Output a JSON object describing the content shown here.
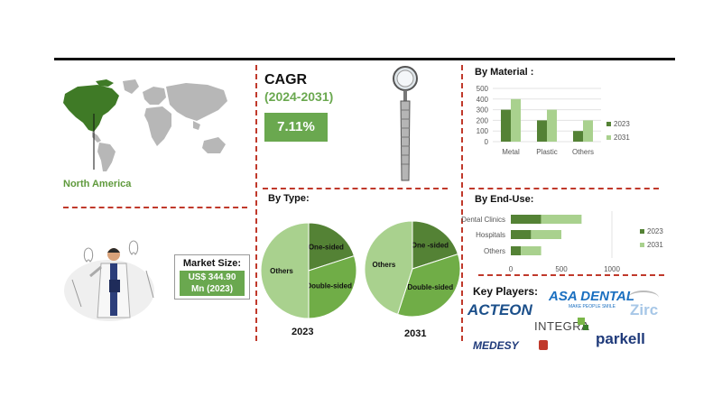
{
  "region": {
    "name": "North America"
  },
  "cagr": {
    "title": "CAGR",
    "years": "(2024-2031)",
    "value": "7.11%"
  },
  "market_size": {
    "label": "Market Size:",
    "value_line1": "US$ 344.90",
    "value_line2": "Mn (2023)"
  },
  "key_players": {
    "title": "Key Players:",
    "logos": [
      "ACTEON",
      "ASA DENTAL",
      "MAKE PEOPLE SMILE",
      "Zirc",
      "INTEGRA",
      "MEDESY",
      "parkell"
    ]
  },
  "colors": {
    "dark_green": "#548235",
    "mid_green": "#70ad47",
    "light_green": "#a9d18e",
    "accent_red": "#c0392b"
  },
  "chart_data": [
    {
      "type": "bar",
      "title": "By Material :",
      "categories": [
        "Metal",
        "Plastic",
        "Others"
      ],
      "series": [
        {
          "name": "2023",
          "values": [
            300,
            200,
            100
          ]
        },
        {
          "name": "2031",
          "values": [
            400,
            300,
            200
          ]
        }
      ],
      "ylim": [
        0,
        500
      ],
      "yticks": [
        "0",
        "100",
        "200",
        "300",
        "400",
        "500"
      ],
      "grid": true,
      "legend": "right"
    },
    {
      "type": "bar",
      "orientation": "horizontal",
      "stacked": true,
      "title": "By  End-Use:",
      "categories": [
        "Dental Clinics",
        "Hospitals",
        "Others"
      ],
      "series": [
        {
          "name": "2023",
          "values": [
            300,
            200,
            100
          ]
        },
        {
          "name": "2031",
          "values": [
            400,
            300,
            200
          ]
        }
      ],
      "xlim": [
        0,
        1000
      ],
      "xticks": [
        "0",
        "500",
        "1000"
      ],
      "legend": "right"
    },
    {
      "type": "pie",
      "title": "By Type:",
      "year": "2023",
      "slices": [
        {
          "label": "One-sided",
          "value": 20
        },
        {
          "label": "Double-sided",
          "value": 30
        },
        {
          "label": "Others",
          "value": 50
        }
      ]
    },
    {
      "type": "pie",
      "year": "2031",
      "slices": [
        {
          "label": "One -sided",
          "value": 20
        },
        {
          "label": "Double-sided",
          "value": 35
        },
        {
          "label": "Others",
          "value": 45
        }
      ]
    }
  ]
}
